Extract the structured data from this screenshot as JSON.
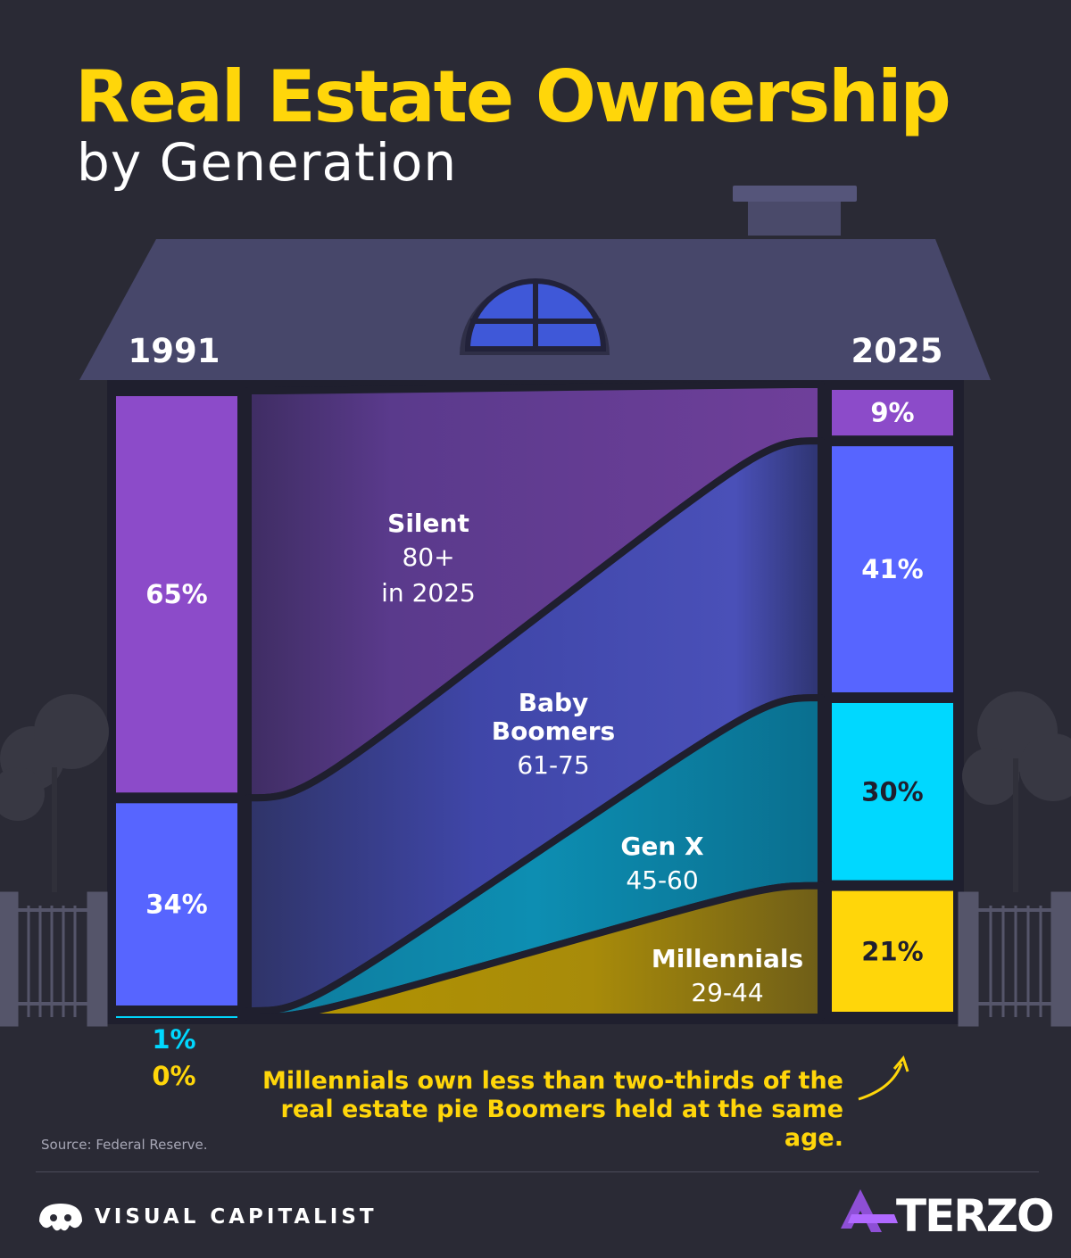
{
  "title": "Real Estate Ownership",
  "subtitle": "by Generation",
  "chart_data": {
    "type": "area",
    "x": [
      "1991",
      "2025"
    ],
    "series": [
      {
        "name": "Silent",
        "age_label": "80+",
        "age_suffix": "in 2025",
        "values": [
          65,
          9
        ],
        "color": "#8c4bc9"
      },
      {
        "name": "Baby Boomers",
        "name_lines": [
          "Baby",
          "Boomers"
        ],
        "age_label": "61-75",
        "values": [
          34,
          41
        ],
        "color": "#5765ff"
      },
      {
        "name": "Gen X",
        "age_label": "45-60",
        "values": [
          1,
          30
        ],
        "color": "#00d8ff"
      },
      {
        "name": "Millennials",
        "age_label": "29-44",
        "values": [
          0,
          21
        ],
        "color": "#ffd60a"
      }
    ],
    "labels_1991": [
      "65%",
      "34%",
      "1%",
      "0%"
    ],
    "labels_2025": [
      "9%",
      "41%",
      "30%",
      "21%"
    ],
    "ylim": [
      0,
      100
    ]
  },
  "note": "Millennials own less than two-thirds of the real estate pie Boomers held at the same age.",
  "source": "Source: Federal Reserve.",
  "footer": {
    "brand_left": "VISUAL CAPITALIST",
    "brand_right": "TERZO"
  },
  "icons": {
    "left_logo": "visual-capitalist-logo-icon",
    "right_logo": "terzo-logo-icon",
    "arrow": "curved-arrow-icon"
  }
}
